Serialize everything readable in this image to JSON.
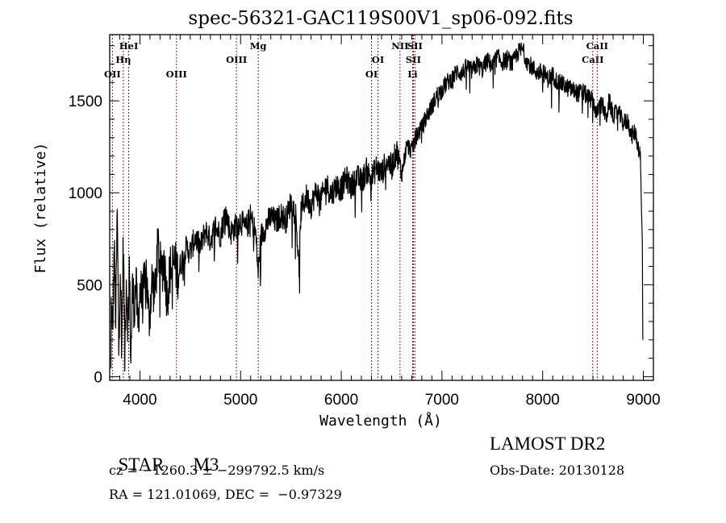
{
  "chart_data": {
    "type": "line",
    "title": "spec-56321-GAC119S00V1_sp06-092.fits",
    "xlabel": "Wavelength (Å)",
    "ylabel": "Flux (relative)",
    "xlim": [
      3700,
      9100
    ],
    "ylim": [
      -20,
      1860
    ],
    "xticks": [
      4000,
      5000,
      6000,
      7000,
      8000,
      9000
    ],
    "xtick_labels": [
      "4000",
      "5000",
      "6000",
      "7000",
      "8000",
      "9000"
    ],
    "x_minor_step": 100,
    "yticks": [
      0,
      500,
      1000,
      1500
    ],
    "ytick_labels": [
      "0",
      "500",
      "1000",
      "1500"
    ],
    "y_minor_step": 100,
    "grid": false,
    "line_color": "#000000",
    "marker_color": "#8b1a1a",
    "spectral_lines": [
      {
        "name": "OII",
        "wavelength": 3727,
        "row": 3
      },
      {
        "name": "Hη",
        "wavelength": 3835,
        "row": 2
      },
      {
        "name": "HeI",
        "wavelength": 3889,
        "row": 1
      },
      {
        "name": "OIII",
        "wavelength": 4363,
        "row": 3
      },
      {
        "name": "OIII",
        "wavelength": 4959,
        "row": 2
      },
      {
        "name": "Mg",
        "wavelength": 5175,
        "row": 1
      },
      {
        "name": "OI",
        "wavelength": 6300,
        "row": 3
      },
      {
        "name": "OI",
        "wavelength": 6364,
        "row": 2
      },
      {
        "name": "NII",
        "wavelength": 6583,
        "row": 1
      },
      {
        "name": "Li",
        "wavelength": 6708,
        "row": 3
      },
      {
        "name": "SII",
        "wavelength": 6716,
        "row": 2
      },
      {
        "name": "SII",
        "wavelength": 6731,
        "row": 1
      },
      {
        "name": "CaII",
        "wavelength": 8498,
        "row": 2
      },
      {
        "name": "CaII",
        "wavelength": 8542,
        "row": 1
      }
    ],
    "series": [
      {
        "name": "flux",
        "envelope": [
          [
            3712,
            0
          ],
          [
            3715,
            380
          ],
          [
            3730,
            250
          ],
          [
            3745,
            700
          ],
          [
            3760,
            300
          ],
          [
            3775,
            900
          ],
          [
            3790,
            150
          ],
          [
            3805,
            620
          ],
          [
            3820,
            200
          ],
          [
            3835,
            750
          ],
          [
            3850,
            120
          ],
          [
            3865,
            540
          ],
          [
            3880,
            280
          ],
          [
            3895,
            600
          ],
          [
            3910,
            90
          ],
          [
            3925,
            480
          ],
          [
            3945,
            380
          ],
          [
            3960,
            520
          ],
          [
            3980,
            260
          ],
          [
            4000,
            470
          ],
          [
            4030,
            420
          ],
          [
            4060,
            600
          ],
          [
            4090,
            300
          ],
          [
            4120,
            520
          ],
          [
            4150,
            450
          ],
          [
            4180,
            720
          ],
          [
            4210,
            560
          ],
          [
            4240,
            640
          ],
          [
            4270,
            430
          ],
          [
            4300,
            580
          ],
          [
            4340,
            620
          ],
          [
            4380,
            560
          ],
          [
            4420,
            640
          ],
          [
            4460,
            700
          ],
          [
            4500,
            680
          ],
          [
            4550,
            760
          ],
          [
            4600,
            700
          ],
          [
            4650,
            800
          ],
          [
            4700,
            740
          ],
          [
            4750,
            820
          ],
          [
            4800,
            770
          ],
          [
            4850,
            900
          ],
          [
            4900,
            780
          ],
          [
            4950,
            820
          ],
          [
            5000,
            850
          ],
          [
            5050,
            800
          ],
          [
            5100,
            870
          ],
          [
            5150,
            780
          ],
          [
            5175,
            560
          ],
          [
            5200,
            760
          ],
          [
            5250,
            820
          ],
          [
            5300,
            870
          ],
          [
            5350,
            840
          ],
          [
            5400,
            880
          ],
          [
            5450,
            850
          ],
          [
            5500,
            950
          ],
          [
            5550,
            880
          ],
          [
            5580,
            580
          ],
          [
            5600,
            900
          ],
          [
            5650,
            980
          ],
          [
            5700,
            930
          ],
          [
            5750,
            1010
          ],
          [
            5800,
            960
          ],
          [
            5850,
            1050
          ],
          [
            5900,
            990
          ],
          [
            5950,
            1040
          ],
          [
            6000,
            1020
          ],
          [
            6050,
            1080
          ],
          [
            6100,
            1030
          ],
          [
            6150,
            1090
          ],
          [
            6200,
            1060
          ],
          [
            6250,
            1120
          ],
          [
            6300,
            1080
          ],
          [
            6350,
            1140
          ],
          [
            6400,
            1100
          ],
          [
            6450,
            1180
          ],
          [
            6500,
            1140
          ],
          [
            6550,
            1230
          ],
          [
            6600,
            1100
          ],
          [
            6650,
            1260
          ],
          [
            6700,
            1230
          ],
          [
            6750,
            1320
          ],
          [
            6800,
            1350
          ],
          [
            6850,
            1420
          ],
          [
            6900,
            1470
          ],
          [
            6950,
            1530
          ],
          [
            7000,
            1560
          ],
          [
            7050,
            1600
          ],
          [
            7100,
            1620
          ],
          [
            7150,
            1660
          ],
          [
            7200,
            1650
          ],
          [
            7250,
            1690
          ],
          [
            7300,
            1660
          ],
          [
            7350,
            1700
          ],
          [
            7400,
            1670
          ],
          [
            7450,
            1720
          ],
          [
            7500,
            1690
          ],
          [
            7550,
            1740
          ],
          [
            7600,
            1710
          ],
          [
            7650,
            1730
          ],
          [
            7700,
            1700
          ],
          [
            7750,
            1760
          ],
          [
            7800,
            1780
          ],
          [
            7850,
            1710
          ],
          [
            7900,
            1680
          ],
          [
            7950,
            1650
          ],
          [
            8000,
            1660
          ],
          [
            8050,
            1620
          ],
          [
            8100,
            1640
          ],
          [
            8150,
            1600
          ],
          [
            8200,
            1590
          ],
          [
            8250,
            1570
          ],
          [
            8300,
            1560
          ],
          [
            8350,
            1540
          ],
          [
            8400,
            1550
          ],
          [
            8450,
            1520
          ],
          [
            8500,
            1500
          ],
          [
            8540,
            1420
          ],
          [
            8560,
            1480
          ],
          [
            8600,
            1470
          ],
          [
            8630,
            1400
          ],
          [
            8660,
            1500
          ],
          [
            8700,
            1420
          ],
          [
            8750,
            1440
          ],
          [
            8800,
            1380
          ],
          [
            8850,
            1390
          ],
          [
            8880,
            1310
          ],
          [
            8920,
            1330
          ],
          [
            8950,
            1250
          ],
          [
            8970,
            1200
          ],
          [
            8980,
            950
          ],
          [
            8990,
            700
          ],
          [
            8995,
            200
          ]
        ],
        "noise_amplitude": 45
      }
    ]
  },
  "info": {
    "object_class": "STAR",
    "subclass": "M3",
    "redshift_line": "cz = −1260.3 ± −299792.5 km/s",
    "coords_line": "RA = 121.01069, DEC =  −0.97329",
    "survey": "LAMOST DR2",
    "obs_date": "Obs-Date: 20130128"
  }
}
